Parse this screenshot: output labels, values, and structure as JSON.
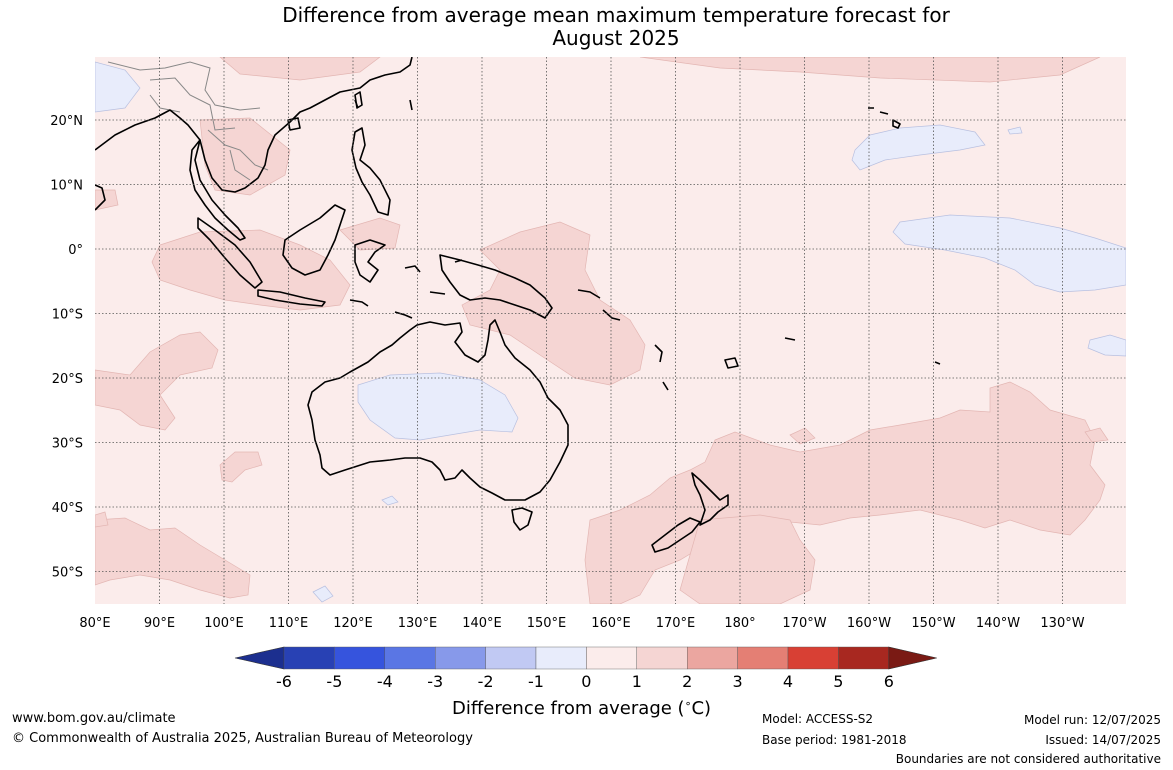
{
  "title": {
    "line1": "Difference from average mean maximum temperature forecast for",
    "line2": "August 2025"
  },
  "map": {
    "lat_labels": [
      "20°N",
      "10°N",
      "0°",
      "10°S",
      "20°S",
      "30°S",
      "40°S",
      "50°S"
    ],
    "lon_labels": [
      "80°E",
      "90°E",
      "100°E",
      "110°E",
      "120°E",
      "130°E",
      "140°E",
      "150°E",
      "160°E",
      "170°E",
      "180°",
      "170°W",
      "160°W",
      "150°W",
      "140°W",
      "130°W"
    ],
    "colors": {
      "ocean_0_1": "#fbeceb",
      "anom_1_2": "#f5d5d3",
      "anom_neg_1_0": "#e8ecfb",
      "coast": "#000000",
      "grid": "#555555"
    }
  },
  "colorbar": {
    "ticks": [
      "-6",
      "-5",
      "-4",
      "-3",
      "-2",
      "-1",
      "0",
      "1",
      "2",
      "3",
      "4",
      "5",
      "6"
    ],
    "colors": [
      "#1c2f8f",
      "#2841b4",
      "#3654dd",
      "#5a76e4",
      "#8799ea",
      "#c1c9f3",
      "#e8ecfb",
      "#fbeceb",
      "#f5d5d3",
      "#eba6a0",
      "#e47f74",
      "#d84034",
      "#a82820",
      "#7a1a14"
    ],
    "label": "Difference from average (",
    "label_degree": "∘",
    "label_unit": "C)"
  },
  "footer": {
    "url": "www.bom.gov.au/climate",
    "copyright": "© Commonwealth of Australia 2025, Australian Bureau of Meteorology",
    "model": "Model: ACCESS-S2",
    "base_period": "Base period: 1981-2018",
    "model_run": "Model run: 12/07/2025",
    "issued": "Issued: 14/07/2025",
    "disclaimer": "Boundaries are not considered authoritative"
  }
}
